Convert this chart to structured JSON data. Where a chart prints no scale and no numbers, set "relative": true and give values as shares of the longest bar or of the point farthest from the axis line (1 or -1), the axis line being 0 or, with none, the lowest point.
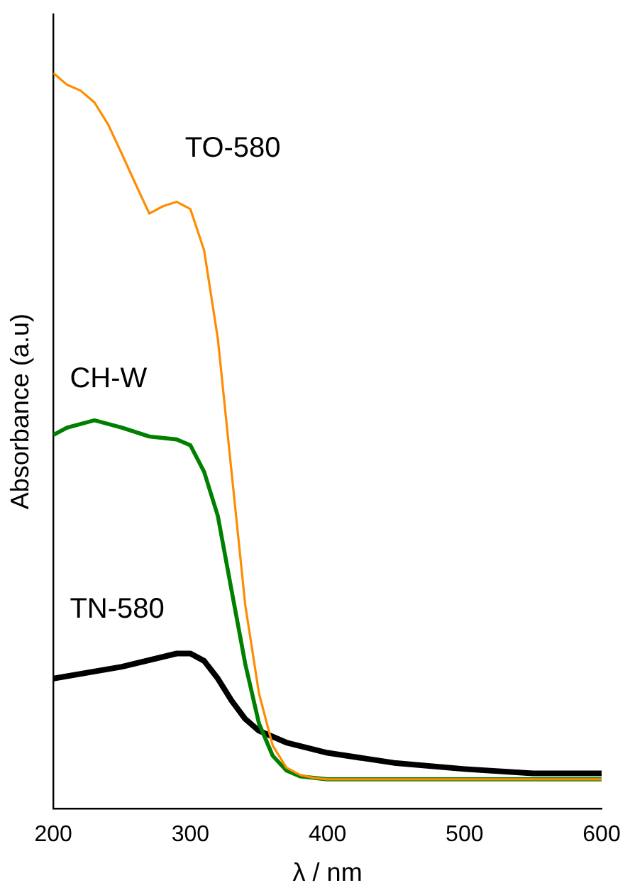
{
  "chart_data": {
    "type": "line",
    "relative": true,
    "xlabel": "λ / nm",
    "ylabel": "Absorbance (a.u)",
    "xlim": [
      200,
      600
    ],
    "xticks": [
      200,
      300,
      400,
      500,
      600
    ],
    "grid": false,
    "legend": false,
    "marker": "none",
    "line_style": "solid",
    "series": [
      {
        "name": "TO-580",
        "color": "#ff8c00",
        "x": [
          200,
          210,
          220,
          230,
          240,
          250,
          260,
          270,
          280,
          290,
          300,
          310,
          320,
          330,
          340,
          350,
          360,
          370,
          380,
          390,
          400,
          600
        ],
        "values": [
          1.0,
          0.984,
          0.976,
          0.96,
          0.93,
          0.89,
          0.849,
          0.809,
          0.819,
          0.825,
          0.815,
          0.759,
          0.639,
          0.458,
          0.277,
          0.157,
          0.086,
          0.056,
          0.046,
          0.042,
          0.04,
          0.04
        ]
      },
      {
        "name": "CH-W",
        "color": "#008000",
        "x": [
          200,
          210,
          230,
          250,
          270,
          290,
          300,
          310,
          320,
          330,
          340,
          350,
          360,
          370,
          380,
          400,
          600
        ],
        "values": [
          0.508,
          0.518,
          0.528,
          0.518,
          0.506,
          0.502,
          0.494,
          0.458,
          0.398,
          0.297,
          0.197,
          0.116,
          0.072,
          0.052,
          0.044,
          0.04,
          0.04
        ]
      },
      {
        "name": "TN-580",
        "color": "#000000",
        "x": [
          200,
          250,
          290,
          300,
          310,
          320,
          330,
          340,
          350,
          370,
          400,
          450,
          500,
          550,
          600
        ],
        "values": [
          0.177,
          0.193,
          0.211,
          0.211,
          0.201,
          0.177,
          0.147,
          0.122,
          0.106,
          0.09,
          0.076,
          0.062,
          0.054,
          0.048,
          0.048
        ]
      }
    ]
  }
}
